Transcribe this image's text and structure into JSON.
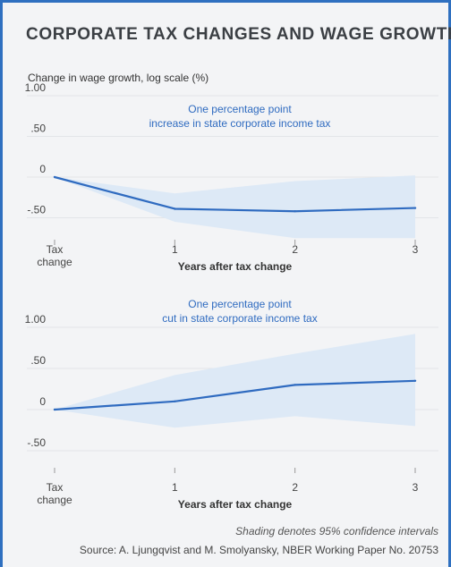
{
  "header": {
    "title": "CORPORATE TAX CHANGES AND WAGE GROWTH",
    "ylabel": "Change in wage growth, log scale (%)"
  },
  "footer": {
    "note": "Shading denotes 95% confidence intervals",
    "source": "Source: A. Ljungqvist and M. Smolyansky, NBER Working Paper No. 20753"
  },
  "colors": {
    "line": "#2f6bc0",
    "band": "#dde9f6",
    "grid": "#e3e5e8",
    "border": "#2f70c0"
  },
  "chart_data": [
    {
      "type": "line",
      "annotation": [
        "One percentage point",
        "increase in state corporate income tax"
      ],
      "xlabel": "Years after tax change",
      "x_ticks": [
        "Tax\nchange",
        "1",
        "2",
        "3"
      ],
      "y_ticks": [
        "1.00",
        ".50",
        "0",
        "-.50"
      ],
      "x": [
        0,
        1,
        2,
        3
      ],
      "values": [
        0,
        -0.39,
        -0.42,
        -0.38
      ],
      "ci_upper": [
        0,
        -0.2,
        -0.05,
        0.02
      ],
      "ci_lower": [
        0,
        -0.55,
        -0.75,
        -0.75
      ],
      "xlim": [
        0,
        3
      ],
      "ylim": [
        -0.75,
        1.0
      ],
      "grid": true
    },
    {
      "type": "line",
      "annotation": [
        "One percentage point",
        "cut in state corporate income tax"
      ],
      "xlabel": "Years after tax change",
      "x_ticks": [
        "Tax\nchange",
        "1",
        "2",
        "3"
      ],
      "y_ticks": [
        "1.00",
        ".50",
        "0",
        "-.50"
      ],
      "x": [
        0,
        1,
        2,
        3
      ],
      "values": [
        0,
        0.1,
        0.3,
        0.35
      ],
      "ci_upper": [
        0,
        0.42,
        0.68,
        0.92
      ],
      "ci_lower": [
        0,
        -0.22,
        -0.08,
        -0.2
      ],
      "xlim": [
        0,
        3
      ],
      "ylim": [
        -0.55,
        1.0
      ],
      "grid": true
    }
  ]
}
